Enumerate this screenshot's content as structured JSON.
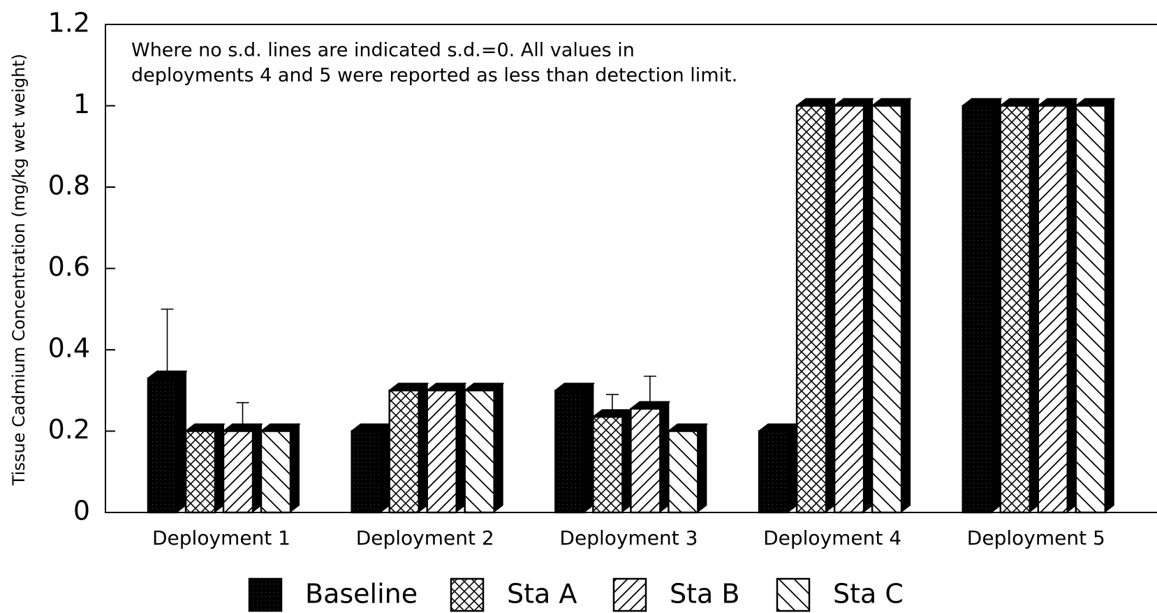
{
  "chart_data": {
    "type": "bar3d",
    "annotation": [
      "Where no s.d. lines are indicated s.d.=0. All values in",
      "deployments 4 and 5 were reported as less than detection limit."
    ],
    "y_label": "Tissue Cadmium Concentration (mg/kg wet weight)",
    "categories": [
      "Deployment 1",
      "Deployment 2",
      "Deployment 3",
      "Deployment 4",
      "Deployment 5"
    ],
    "series": [
      {
        "name": "Baseline",
        "color": "#000000",
        "pattern": "solid",
        "values": [
          0.33,
          0.2,
          0.3,
          0.2,
          1
        ],
        "errors": [
          0.17,
          0,
          0,
          0,
          0
        ]
      },
      {
        "name": "Sta A",
        "color": "#000000",
        "pattern": "crosshatch",
        "values": [
          0.2,
          0.3,
          0.235,
          1,
          1
        ],
        "errors": [
          0,
          0,
          0.055,
          0,
          0
        ]
      },
      {
        "name": "Sta B",
        "color": "#000000",
        "pattern": "diagonal",
        "values": [
          0.2,
          0.3,
          0.255,
          1,
          1
        ],
        "errors": [
          0.07,
          0,
          0.08,
          0,
          0
        ]
      },
      {
        "name": "Sta C",
        "color": "#000000",
        "pattern": "backdiagonal",
        "values": [
          0.2,
          0.3,
          0.2,
          1,
          1
        ],
        "errors": [
          0,
          0,
          0,
          0,
          0
        ]
      }
    ],
    "ylim": [
      0,
      1.2
    ],
    "yticks": [
      0,
      0.2,
      0.4,
      0.6,
      0.8,
      1,
      1.2
    ],
    "legend": "bottom"
  }
}
